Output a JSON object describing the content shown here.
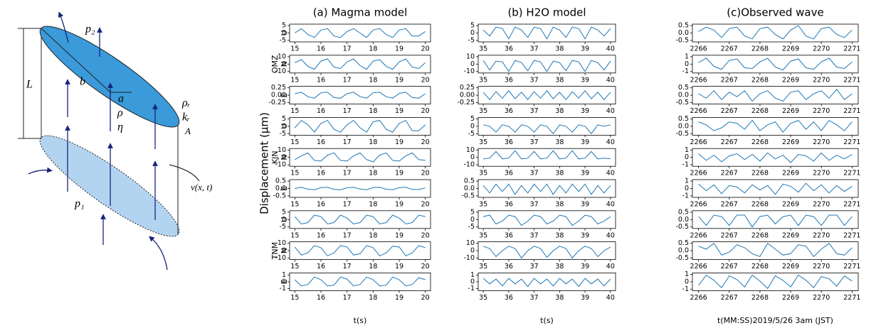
{
  "diagram": {
    "labels": {
      "p2": "p₂",
      "b": "b",
      "a": "a",
      "L": "L",
      "rho": "ρ",
      "eta": "η",
      "rho_r": "ρᵣ",
      "k_r": "kᵣ",
      "A": "A",
      "v": "v(x, t)",
      "p1": "p₁"
    }
  },
  "figure": {
    "ylabel": "Displacement (μm)",
    "stations": [
      "OMZ",
      "KJN",
      "TNM"
    ],
    "components": [
      "U",
      "N",
      "E"
    ]
  },
  "chart_data": [
    {
      "type": "line",
      "title": "(a) Magma model",
      "xlabel": "t(s)",
      "x": [
        15,
        15.25,
        15.5,
        15.75,
        16,
        16.25,
        16.5,
        16.75,
        17,
        17.25,
        17.5,
        17.75,
        18,
        18.25,
        18.5,
        18.75,
        19,
        19.25,
        19.5,
        19.75,
        20
      ],
      "xlim": [
        14.8,
        20.2
      ],
      "xticks": [
        15,
        16,
        17,
        18,
        19,
        20
      ],
      "series": [
        {
          "color": "#1f77b4",
          "ylim": [
            -6,
            6
          ],
          "yticks": [
            -5,
            0,
            5
          ],
          "values": [
            0,
            3,
            -1,
            -3,
            2,
            3,
            -2,
            -3,
            1,
            3,
            0,
            -3,
            2,
            3,
            -1,
            -3,
            2,
            3,
            -2,
            -2,
            1
          ]
        },
        {
          "color": "#1f77b4",
          "ylim": [
            -12,
            12
          ],
          "yticks": [
            -10,
            0,
            10
          ],
          "values": [
            2,
            6,
            -3,
            -7,
            4,
            7,
            -4,
            -6,
            3,
            7,
            -2,
            -7,
            4,
            6,
            -3,
            -7,
            3,
            7,
            -4,
            -6,
            2
          ]
        },
        {
          "color": "#1f77b4",
          "ylim": [
            -0.3,
            0.3
          ],
          "yticks": [
            -0.25,
            {
              "value": 0,
              "label": "0.00"
            },
            0.25
          ],
          "values": [
            0.05,
            0.1,
            -0.05,
            -0.1,
            0.08,
            0.1,
            -0.08,
            -0.1,
            0.05,
            0.1,
            -0.05,
            -0.1,
            0.08,
            0.1,
            -0.05,
            -0.1,
            0.06,
            0.1,
            -0.08,
            -0.1,
            0.05
          ]
        },
        {
          "color": "#1f77b4",
          "ylim": [
            -6,
            6
          ],
          "yticks": [
            -5,
            0,
            5
          ],
          "values": [
            -1,
            4,
            1,
            -4,
            2,
            4,
            -2,
            -4,
            1,
            4,
            -1,
            -4,
            3,
            4,
            -2,
            -4,
            2,
            4,
            -3,
            -3,
            1
          ]
        },
        {
          "color": "#1f77b4",
          "ylim": [
            -12,
            12
          ],
          "yticks": [
            -10,
            0,
            10
          ],
          "values": [
            -3,
            2,
            6,
            -4,
            -5,
            3,
            6,
            -4,
            -5,
            2,
            6,
            -3,
            -6,
            3,
            6,
            -4,
            -5,
            2,
            6,
            -3,
            -4
          ]
        },
        {
          "color": "#1f77b4",
          "ylim": [
            -0.6,
            0.6
          ],
          "yticks": [
            -0.5,
            {
              "value": 0,
              "label": "0.0"
            },
            0.5
          ],
          "values": [
            0,
            0.08,
            -0.05,
            -0.08,
            0.06,
            0.08,
            -0.06,
            -0.08,
            0.05,
            0.08,
            -0.04,
            -0.08,
            0.06,
            0.08,
            -0.05,
            -0.08,
            0.06,
            0.08,
            -0.06,
            -0.07,
            0.04
          ]
        },
        {
          "color": "#1f77b4",
          "ylim": [
            -6,
            6
          ],
          "yticks": [
            -5,
            0,
            5
          ],
          "values": [
            2,
            -3,
            -2,
            3,
            2,
            -3,
            -2,
            3,
            1,
            -3,
            -2,
            3,
            2,
            -3,
            -2,
            3,
            1,
            -3,
            -2,
            3,
            2
          ]
        },
        {
          "color": "#1f77b4",
          "ylim": [
            -12,
            12
          ],
          "yticks": [
            -10,
            0,
            10
          ],
          "values": [
            5,
            -6,
            -3,
            7,
            4,
            -7,
            -3,
            7,
            5,
            -6,
            -4,
            7,
            4,
            -7,
            -3,
            6,
            5,
            -7,
            -3,
            7,
            4
          ]
        },
        {
          "color": "#1f77b4",
          "ylim": [
            -1.3,
            1.3
          ],
          "yticks": [
            -1,
            0,
            1
          ],
          "values": [
            0.3,
            -0.6,
            -0.4,
            0.7,
            0.3,
            -0.6,
            -0.5,
            0.7,
            0.4,
            -0.6,
            -0.4,
            0.7,
            0.3,
            -0.6,
            -0.5,
            0.7,
            0.3,
            -0.6,
            -0.4,
            0.6,
            0.3
          ]
        }
      ]
    },
    {
      "type": "line",
      "title": "(b) H2O model",
      "xlabel": "t(s)",
      "x": [
        35,
        35.25,
        35.5,
        35.75,
        36,
        36.25,
        36.5,
        36.75,
        37,
        37.25,
        37.5,
        37.75,
        38,
        38.25,
        38.5,
        38.75,
        39,
        39.25,
        39.5,
        39.75,
        40
      ],
      "xlim": [
        34.8,
        40.2
      ],
      "xticks": [
        35,
        36,
        37,
        38,
        39,
        40
      ],
      "series": [
        {
          "color": "#1f77b4",
          "ylim": [
            -6,
            6
          ],
          "yticks": [
            -5,
            0,
            5
          ],
          "values": [
            2,
            -2,
            4,
            3,
            -4,
            4,
            2,
            -3,
            4,
            3,
            -4,
            4,
            2,
            -3,
            4,
            3,
            -4,
            4,
            2,
            -2,
            3
          ]
        },
        {
          "color": "#1f77b4",
          "ylim": [
            -12,
            12
          ],
          "yticks": [
            -10,
            0,
            10
          ],
          "values": [
            5,
            -8,
            4,
            3,
            -10,
            5,
            2,
            -9,
            5,
            3,
            -10,
            4,
            2,
            -9,
            5,
            3,
            -10,
            5,
            2,
            -8,
            4
          ]
        },
        {
          "color": "#1f77b4",
          "ylim": [
            -0.3,
            0.3
          ],
          "yticks": [
            -0.25,
            {
              "value": 0,
              "label": "0.00"
            },
            0.25
          ],
          "values": [
            0.1,
            -0.15,
            0.12,
            -0.1,
            0.15,
            -0.12,
            0.1,
            -0.15,
            0.12,
            -0.1,
            0.15,
            -0.12,
            0.1,
            -0.15,
            0.12,
            -0.1,
            0.15,
            -0.12,
            0.1,
            -0.15,
            0.1
          ]
        },
        {
          "color": "#1f77b4",
          "ylim": [
            -6,
            6
          ],
          "yticks": [
            -5,
            0,
            5
          ],
          "values": [
            1,
            0,
            -4,
            1,
            0,
            -4,
            1,
            0,
            -4,
            1,
            0,
            -5,
            1,
            0,
            -4,
            1,
            0,
            -5,
            1,
            0,
            1
          ]
        },
        {
          "color": "#1f77b4",
          "ylim": [
            -12,
            12
          ],
          "yticks": [
            -10,
            0,
            10
          ],
          "values": [
            -2,
            -1,
            8,
            -2,
            -1,
            9,
            -2,
            -1,
            8,
            -2,
            -1,
            9,
            -2,
            -1,
            9,
            -2,
            -1,
            8,
            -2,
            -1,
            -2
          ]
        },
        {
          "color": "#1f77b4",
          "ylim": [
            -0.6,
            0.6
          ],
          "yticks": [
            -0.5,
            {
              "value": 0,
              "label": "0.0"
            },
            0.5
          ],
          "values": [
            0.2,
            -0.3,
            0.3,
            -0.2,
            0.3,
            -0.4,
            0.2,
            -0.3,
            0.3,
            -0.2,
            0.3,
            -0.4,
            0.2,
            -0.3,
            0.3,
            -0.2,
            0.3,
            -0.4,
            0.2,
            -0.3,
            0.2
          ]
        },
        {
          "color": "#1f77b4",
          "ylim": [
            -6,
            6
          ],
          "yticks": [
            -5,
            0,
            5
          ],
          "values": [
            2,
            3,
            -3,
            -1,
            3,
            2,
            -4,
            -1,
            3,
            2,
            -3,
            -1,
            3,
            2,
            -4,
            -1,
            3,
            2,
            -3,
            -1,
            2
          ]
        },
        {
          "color": "#1f77b4",
          "ylim": [
            -12,
            12
          ],
          "yticks": [
            -10,
            0,
            10
          ],
          "values": [
            6,
            3,
            -8,
            0,
            6,
            3,
            -10,
            0,
            6,
            3,
            -9,
            0,
            6,
            3,
            -10,
            0,
            6,
            3,
            -8,
            0,
            5
          ]
        },
        {
          "color": "#1f77b4",
          "ylim": [
            -1.3,
            1.3
          ],
          "yticks": [
            -1,
            0,
            1
          ],
          "values": [
            0.5,
            -0.3,
            0.4,
            -0.6,
            0.5,
            -0.3,
            0.4,
            -0.7,
            0.5,
            -0.3,
            0.4,
            -0.6,
            0.5,
            -0.3,
            0.4,
            -0.7,
            0.5,
            -0.3,
            0.4,
            -0.6,
            0.4
          ]
        }
      ]
    },
    {
      "type": "line",
      "title": "(c)Observed wave",
      "xlabel": "t(MM:SS)2019/5/26 3am (JST)",
      "x": [
        2266,
        2266.25,
        2266.5,
        2266.75,
        2267,
        2267.25,
        2267.5,
        2267.75,
        2268,
        2268.25,
        2268.5,
        2268.75,
        2269,
        2269.25,
        2269.5,
        2269.75,
        2270,
        2270.25,
        2270.5,
        2270.75,
        2271
      ],
      "xlim": [
        2265.8,
        2271.2
      ],
      "xticks": [
        2266,
        2267,
        2268,
        2269,
        2270,
        2271
      ],
      "series": [
        {
          "color": "#1f77b4",
          "ylim": [
            -0.6,
            0.6
          ],
          "yticks": [
            -0.5,
            {
              "value": 0,
              "label": "0.0"
            },
            0.5
          ],
          "values": [
            0.1,
            0.4,
            0.2,
            -0.3,
            0.3,
            0.4,
            -0.2,
            -0.4,
            0.3,
            0.4,
            -0.1,
            -0.4,
            0.2,
            0.5,
            -0.2,
            -0.4,
            0.3,
            0.4,
            -0.1,
            -0.3,
            0.2
          ]
        },
        {
          "color": "#1f77b4",
          "ylim": [
            -1.2,
            1.2
          ],
          "yticks": [
            -1,
            0,
            1
          ],
          "values": [
            0.2,
            0.8,
            -0.3,
            -0.7,
            0.5,
            0.7,
            -0.5,
            -0.6,
            0.3,
            0.8,
            -0.4,
            -0.8,
            0.4,
            0.7,
            -0.5,
            -0.7,
            0.3,
            0.8,
            -0.4,
            -0.6,
            0.3
          ]
        },
        {
          "color": "#1f77b4",
          "ylim": [
            -0.6,
            0.6
          ],
          "yticks": [
            -0.5,
            {
              "value": 0,
              "label": "0.0"
            },
            0.5
          ],
          "values": [
            0.1,
            -0.2,
            0.3,
            -0.3,
            0.2,
            -0.1,
            0.3,
            -0.4,
            0.1,
            0.3,
            -0.2,
            -0.4,
            0.2,
            0.3,
            -0.3,
            0.1,
            0.3,
            -0.2,
            0.4,
            -0.3,
            0.1
          ]
        },
        {
          "color": "#1f77b4",
          "ylim": [
            -0.6,
            0.6
          ],
          "yticks": [
            -0.5,
            {
              "value": 0,
              "label": "0.0"
            },
            0.5
          ],
          "values": [
            0.3,
            0.1,
            -0.3,
            -0.1,
            0.3,
            0.2,
            -0.2,
            0.4,
            -0.3,
            0.1,
            0.3,
            -0.4,
            0.2,
            0.4,
            -0.2,
            0.3,
            -0.3,
            0.4,
            0.1,
            -0.3,
            0.3
          ]
        },
        {
          "color": "#1f77b4",
          "ylim": [
            -1.2,
            1.2
          ],
          "yticks": [
            -1,
            0,
            1
          ],
          "values": [
            0.5,
            -0.4,
            0.3,
            -0.6,
            0.2,
            0.5,
            -0.3,
            0.4,
            -0.5,
            0.6,
            -0.2,
            0.3,
            -0.7,
            0.4,
            0.2,
            -0.5,
            0.6,
            -0.4,
            0.3,
            -0.2,
            0.4
          ]
        },
        {
          "color": "#1f77b4",
          "ylim": [
            -1.2,
            1.2
          ],
          "yticks": [
            -1,
            0,
            1
          ],
          "values": [
            0.6,
            -0.3,
            0.5,
            -0.7,
            0.4,
            0.2,
            -0.6,
            0.5,
            -0.2,
            0.4,
            -0.8,
            0.6,
            0.3,
            -0.5,
            0.7,
            -0.3,
            0.5,
            -0.6,
            0.4,
            -0.4,
            0.3
          ]
        },
        {
          "color": "#1f77b4",
          "ylim": [
            -0.6,
            0.6
          ],
          "yticks": [
            -0.5,
            {
              "value": 0,
              "label": "0.0"
            },
            0.5
          ],
          "values": [
            0.2,
            -0.4,
            0.3,
            0.2,
            -0.4,
            0.3,
            0.3,
            -0.5,
            0.2,
            0.3,
            -0.3,
            0.2,
            0.3,
            -0.4,
            0.3,
            0.2,
            -0.4,
            0.3,
            0.3,
            -0.4,
            0.2
          ]
        },
        {
          "color": "#1f77b4",
          "ylim": [
            -0.6,
            0.6
          ],
          "yticks": [
            -0.5,
            {
              "value": 0,
              "label": "0.0"
            },
            0.5
          ],
          "values": [
            0.3,
            0.1,
            0.5,
            -0.3,
            -0.1,
            0.4,
            0.2,
            -0.2,
            -0.4,
            0.5,
            0.1,
            -0.3,
            -0.2,
            0.4,
            0.3,
            -0.4,
            0.1,
            0.5,
            -0.2,
            -0.3,
            0.2
          ]
        },
        {
          "color": "#1f77b4",
          "ylim": [
            -1.2,
            1.2
          ],
          "yticks": [
            -1,
            0,
            1
          ],
          "values": [
            -0.5,
            0.9,
            0.2,
            -0.8,
            0.8,
            0.3,
            -0.7,
            0.9,
            0.1,
            -0.9,
            0.8,
            0.2,
            -0.7,
            0.9,
            0.2,
            -0.8,
            0.7,
            0.4,
            -0.6,
            0.8,
            0.1
          ]
        }
      ]
    }
  ]
}
